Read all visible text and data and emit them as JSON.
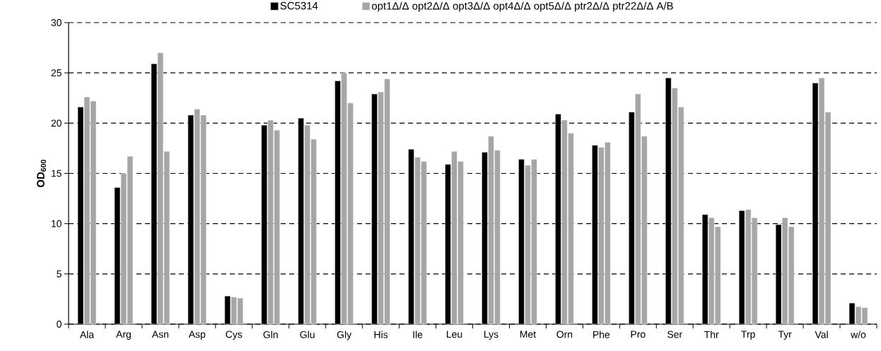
{
  "chart_data": {
    "type": "bar",
    "ylabel": "OD$_{600}$",
    "categories": [
      "Ala",
      "Arg",
      "Asn",
      "Asp",
      "Cys",
      "Gln",
      "Glu",
      "Gly",
      "His",
      "Ile",
      "Leu",
      "Lys",
      "Met",
      "Orn",
      "Phe",
      "Pro",
      "Ser",
      "Thr",
      "Trp",
      "Tyr",
      "Val",
      "w/o"
    ],
    "series": [
      {
        "name": "SC5314",
        "color": "#000000",
        "values": [
          21.6,
          13.6,
          25.9,
          20.8,
          2.8,
          19.8,
          20.5,
          24.2,
          22.9,
          17.4,
          15.9,
          17.1,
          16.4,
          20.9,
          17.8,
          21.1,
          24.5,
          10.9,
          11.3,
          9.9,
          24.0,
          2.1
        ]
      },
      {
        "name": "opt1Δ/Δ opt2Δ/Δ opt3Δ/Δ opt4Δ/Δ opt5Δ/Δ ptr2Δ/Δ ptr22Δ/Δ A/B",
        "color": "#a6a6a6",
        "values": [
          22.6,
          15.0,
          27.0,
          21.4,
          2.7,
          20.3,
          19.8,
          25.0,
          23.1,
          16.6,
          17.2,
          18.7,
          15.8,
          20.3,
          17.6,
          22.9,
          23.5,
          10.6,
          11.4,
          10.6,
          24.5,
          1.75
        ]
      },
      {
        "color": "#a6a6a6",
        "values": [
          22.2,
          16.7,
          17.2,
          20.8,
          2.6,
          19.3,
          18.4,
          22.0,
          24.4,
          16.2,
          16.2,
          17.3,
          16.4,
          19.0,
          18.1,
          18.7,
          21.6,
          9.7,
          10.6,
          9.7,
          21.1,
          1.65
        ]
      }
    ],
    "ylim": [
      0,
      30
    ],
    "yticks": [
      0,
      5,
      10,
      15,
      20,
      25,
      30
    ],
    "grid": "y",
    "legend": "top"
  }
}
